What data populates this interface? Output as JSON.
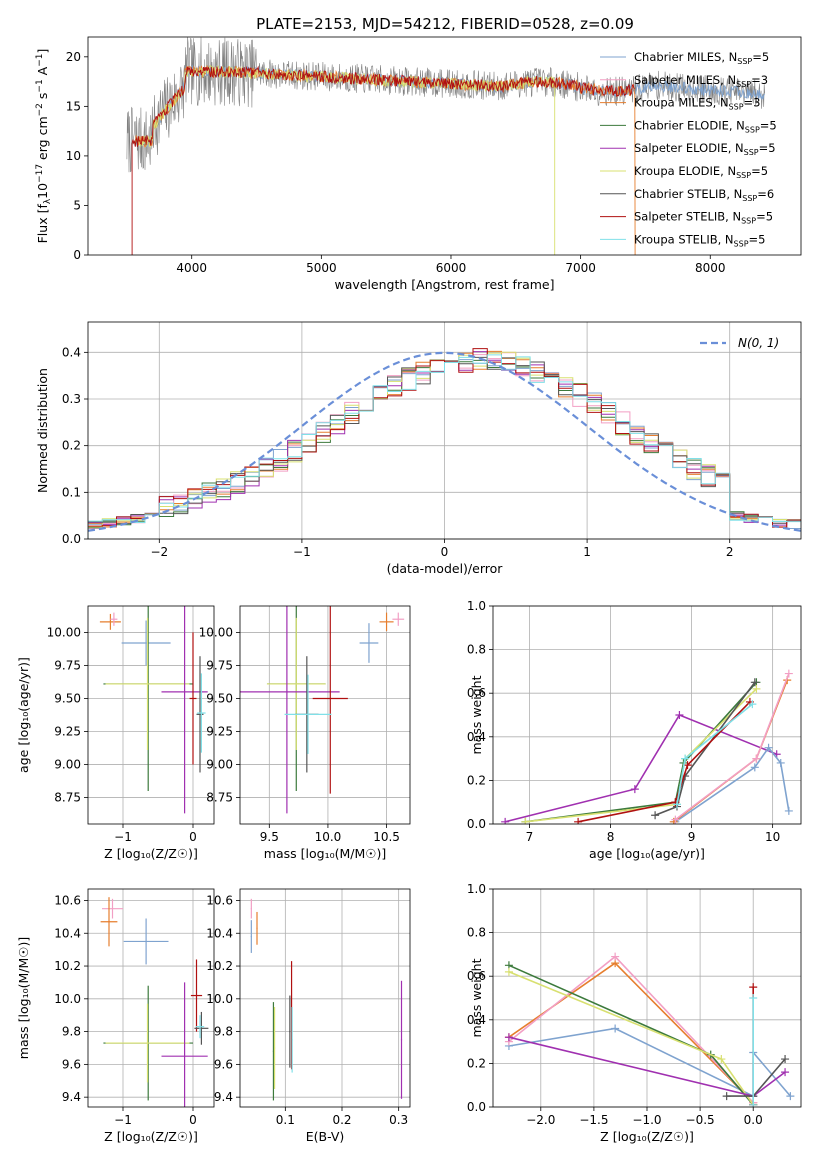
{
  "page": {
    "title": "PLATE=2153, MJD=54212, FIBERID=0528, z=0.09"
  },
  "series_styles": [
    {
      "name": "Chabrier MILES",
      "nssp": "5",
      "color": "#7fa3cf"
    },
    {
      "name": "Salpeter MILES",
      "nssp": "3",
      "color": "#f29fc4"
    },
    {
      "name": "Kroupa MILES",
      "nssp": "3",
      "color": "#e67e2e"
    },
    {
      "name": "Chabrier ELODIE",
      "nssp": "5",
      "color": "#3c7a3c"
    },
    {
      "name": "Salpeter ELODIE",
      "nssp": "5",
      "color": "#a030b0"
    },
    {
      "name": "Kroupa ELODIE",
      "nssp": "5",
      "color": "#d8e070"
    },
    {
      "name": "Chabrier STELIB",
      "nssp": "6",
      "color": "#555555"
    },
    {
      "name": "Salpeter STELIB",
      "nssp": "5",
      "color": "#b01010"
    },
    {
      "name": "Kroupa STELIB",
      "nssp": "5",
      "color": "#80e0e8"
    }
  ],
  "chart_data": [
    {
      "id": "spectrum",
      "type": "line",
      "title": "PLATE=2153, MJD=54212, FIBERID=0528, z=0.09",
      "xlabel": "wavelength [Angstrom, rest frame]",
      "ylabel": "Flux [f",
      "ylabel_sub": "λ",
      "ylabel_rest": "10",
      "ylabel_exp1": "−17",
      "ylabel_mid": " erg cm",
      "ylabel_exp2": "−2",
      "ylabel_mid2": " s",
      "ylabel_exp3": "−1",
      "ylabel_end": " A",
      "ylabel_exp4": "−1",
      "ylabel_close": "]",
      "xlim": [
        3200,
        8700
      ],
      "ylim": [
        0,
        22
      ],
      "xticks": [
        4000,
        5000,
        6000,
        7000,
        8000
      ],
      "yticks": [
        0,
        5,
        10,
        15,
        20
      ],
      "grid": false,
      "legend": "top-right",
      "legend_prefix": "N",
      "legend_sub": "SSP",
      "wave_range": [
        3500,
        8420
      ],
      "model_lines": [
        {
          "series": 0,
          "start": 3560,
          "end": 8420
        },
        {
          "series": 2,
          "start": 3560,
          "end": 7420,
          "drop_end": 7420
        },
        {
          "series": 5,
          "start": 3560,
          "end": 6800,
          "drop_end": 6800
        },
        {
          "series": 7,
          "start": 3540,
          "end": 7420,
          "drop_start": 3540
        }
      ],
      "observed_color": "#808080"
    },
    {
      "id": "residuals",
      "type": "histogram",
      "xlabel": "(data-model)/error",
      "ylabel": "Normed distribution",
      "xlim": [
        -2.5,
        2.5
      ],
      "ylim": [
        0,
        0.465
      ],
      "xticks": [
        -2,
        -1,
        0,
        1,
        2
      ],
      "yticks": [
        0,
        0.1,
        0.2,
        0.3,
        0.4
      ],
      "grid": true,
      "legend": "top-right",
      "legend_label": "N(0, 1)",
      "gaussian_color": "#6a8fd8",
      "bin_width": 0.1
    },
    {
      "id": "age_vs_Z",
      "type": "errorbar",
      "xlabel": "Z [log₁₀(Z/Z☉)]",
      "ylabel": "age  [log₁₀(age/yr)]",
      "xlim": [
        -1.5,
        0.3
      ],
      "ylim": [
        8.55,
        10.2
      ],
      "xticks": [
        -1,
        0
      ],
      "yticks": [
        8.75,
        9.0,
        9.25,
        9.5,
        9.75,
        10.0
      ],
      "grid": true,
      "points": [
        {
          "series": 2,
          "x": -1.18,
          "y": 10.08,
          "xe": 0.15,
          "ye": 0.06
        },
        {
          "series": 1,
          "x": -1.13,
          "y": 10.1,
          "xe": 0.05,
          "ye": 0.05
        },
        {
          "series": 0,
          "x": -0.67,
          "y": 9.92,
          "xe": 0.35,
          "ye": 0.17
        },
        {
          "series": 3,
          "x": -0.64,
          "y": 9.61,
          "xe": 0.64,
          "ye": 0.81
        },
        {
          "series": 5,
          "x": -0.65,
          "y": 9.61,
          "xe": 0.6,
          "ye": 0.5
        },
        {
          "series": 4,
          "x": -0.12,
          "y": 9.55,
          "xe": 0.33,
          "ye": 0.92
        },
        {
          "series": 7,
          "x": 0.0,
          "y": 9.5,
          "xe": 0.05,
          "ye": 0.5
        },
        {
          "series": 6,
          "x": 0.1,
          "y": 9.38,
          "xe": 0.05,
          "ye": 0.44
        },
        {
          "series": 8,
          "x": 0.12,
          "y": 9.39,
          "xe": 0.06,
          "ye": 0.3
        }
      ]
    },
    {
      "id": "age_vs_mass",
      "type": "errorbar",
      "xlabel": "mass [log₁₀(M/M☉)]",
      "ylabel": "",
      "xlim": [
        9.25,
        10.7
      ],
      "ylim": [
        8.55,
        10.2
      ],
      "xticks": [
        9.5,
        10.0,
        10.5
      ],
      "yticks": [
        8.75,
        9.0,
        9.25,
        9.5,
        9.75,
        10.0
      ],
      "grid": true,
      "points": [
        {
          "series": 1,
          "x": 10.6,
          "y": 10.1,
          "xe": 0.05,
          "ye": 0.05
        },
        {
          "series": 2,
          "x": 10.5,
          "y": 10.08,
          "xe": 0.06,
          "ye": 0.07
        },
        {
          "series": 0,
          "x": 10.35,
          "y": 9.92,
          "xe": 0.08,
          "ye": 0.15
        },
        {
          "series": 3,
          "x": 9.73,
          "y": 9.61,
          "xe": 0.25,
          "ye": 0.81
        },
        {
          "series": 5,
          "x": 9.73,
          "y": 9.61,
          "xe": 0.25,
          "ye": 0.5
        },
        {
          "series": 4,
          "x": 9.65,
          "y": 9.55,
          "xe": 0.45,
          "ye": 0.92
        },
        {
          "series": 7,
          "x": 10.02,
          "y": 9.5,
          "xe": 0.15,
          "ye": 0.72
        },
        {
          "series": 6,
          "x": 9.82,
          "y": 9.38,
          "xe": 0.1,
          "ye": 0.44
        },
        {
          "series": 8,
          "x": 9.83,
          "y": 9.38,
          "xe": 0.2,
          "ye": 0.3
        }
      ]
    },
    {
      "id": "weight_vs_age",
      "type": "line",
      "xlabel": "age  [log₁₀(age/yr)]",
      "ylabel": "mass weight",
      "xlim": [
        6.55,
        10.35
      ],
      "ylim": [
        0,
        1.0
      ],
      "xticks": [
        7,
        8,
        9,
        10
      ],
      "yticks": [
        0.0,
        0.2,
        0.4,
        0.6,
        0.8,
        1.0
      ],
      "grid": true,
      "series": [
        {
          "series": 4,
          "x": [
            6.7,
            8.3,
            8.85,
            10.05
          ],
          "y": [
            0.01,
            0.16,
            0.5,
            0.32
          ]
        },
        {
          "series": 0,
          "x": [
            8.8,
            9.78,
            9.95,
            10.1,
            10.2
          ],
          "y": [
            0.01,
            0.26,
            0.35,
            0.28,
            0.06
          ]
        },
        {
          "series": 2,
          "x": [
            8.78,
            9.8,
            10.18
          ],
          "y": [
            0.01,
            0.3,
            0.66
          ]
        },
        {
          "series": 1,
          "x": [
            8.8,
            9.8,
            10.2
          ],
          "y": [
            0.02,
            0.3,
            0.69
          ]
        },
        {
          "series": 3,
          "x": [
            6.95,
            8.8,
            8.9,
            9.8
          ],
          "y": [
            0.01,
            0.1,
            0.28,
            0.65
          ]
        },
        {
          "series": 5,
          "x": [
            6.95,
            8.82,
            8.92,
            9.8
          ],
          "y": [
            0.01,
            0.09,
            0.3,
            0.62
          ]
        },
        {
          "series": 6,
          "x": [
            8.55,
            8.82,
            8.92,
            9.78
          ],
          "y": [
            0.04,
            0.08,
            0.22,
            0.65
          ]
        },
        {
          "series": 7,
          "x": [
            7.6,
            8.8,
            8.95,
            9.72
          ],
          "y": [
            0.01,
            0.1,
            0.27,
            0.56
          ]
        },
        {
          "series": 8,
          "x": [
            8.82,
            8.92,
            9.75
          ],
          "y": [
            0.09,
            0.3,
            0.55
          ]
        }
      ]
    },
    {
      "id": "mass_vs_Z",
      "type": "errorbar",
      "xlabel": "Z [log₁₀(Z/Z☉)]",
      "ylabel": "mass [log₁₀(M/M☉)]",
      "xlim": [
        -1.5,
        0.3
      ],
      "ylim": [
        9.34,
        10.67
      ],
      "xticks": [
        -1,
        0
      ],
      "yticks": [
        9.4,
        9.6,
        9.8,
        10.0,
        10.2,
        10.4,
        10.6
      ],
      "grid": true,
      "points": [
        {
          "series": 1,
          "x": -1.15,
          "y": 10.55,
          "xe": 0.15,
          "ye": 0.06
        },
        {
          "series": 2,
          "x": -1.2,
          "y": 10.47,
          "xe": 0.12,
          "ye": 0.15
        },
        {
          "series": 0,
          "x": -0.67,
          "y": 10.35,
          "xe": 0.32,
          "ye": 0.14
        },
        {
          "series": 3,
          "x": -0.64,
          "y": 9.73,
          "xe": 0.64,
          "ye": 0.35
        },
        {
          "series": 5,
          "x": -0.65,
          "y": 9.73,
          "xe": 0.6,
          "ye": 0.24
        },
        {
          "series": 4,
          "x": -0.12,
          "y": 9.65,
          "xe": 0.33,
          "ye": 0.45
        },
        {
          "series": 7,
          "x": 0.05,
          "y": 10.02,
          "xe": 0.08,
          "ye": 0.22
        },
        {
          "series": 6,
          "x": 0.12,
          "y": 9.82,
          "xe": 0.1,
          "ye": 0.1
        },
        {
          "series": 8,
          "x": 0.1,
          "y": 9.83,
          "xe": 0.06,
          "ye": 0.07
        }
      ]
    },
    {
      "id": "mass_vs_EBV",
      "type": "errorbar",
      "xlabel": "E(B-V)",
      "ylabel": "",
      "xlim": [
        0.02,
        0.32
      ],
      "ylim": [
        9.34,
        10.67
      ],
      "xticks": [
        0.1,
        0.2,
        0.3
      ],
      "yticks": [
        9.4,
        9.6,
        9.8,
        10.0,
        10.2,
        10.4,
        10.6
      ],
      "grid": true,
      "points": [
        {
          "series": 1,
          "x": 0.04,
          "y": 10.55,
          "xe": 0.001,
          "ye": 0.06
        },
        {
          "series": 0,
          "x": 0.04,
          "y": 10.38,
          "xe": 0.001,
          "ye": 0.1
        },
        {
          "series": 2,
          "x": 0.05,
          "y": 10.43,
          "xe": 0.001,
          "ye": 0.1
        },
        {
          "series": 3,
          "x": 0.079,
          "y": 9.68,
          "xe": 0.001,
          "ye": 0.3
        },
        {
          "series": 5,
          "x": 0.081,
          "y": 9.7,
          "xe": 0.001,
          "ye": 0.25
        },
        {
          "series": 7,
          "x": 0.111,
          "y": 9.9,
          "xe": 0.001,
          "ye": 0.33
        },
        {
          "series": 6,
          "x": 0.108,
          "y": 9.8,
          "xe": 0.001,
          "ye": 0.22
        },
        {
          "series": 8,
          "x": 0.112,
          "y": 9.75,
          "xe": 0.001,
          "ye": 0.2
        },
        {
          "series": 4,
          "x": 0.305,
          "y": 9.75,
          "xe": 0.001,
          "ye": 0.36
        }
      ]
    },
    {
      "id": "weight_vs_Z",
      "type": "line",
      "xlabel": "Z [log₁₀(Z/Z☉)]",
      "ylabel": "mass weight",
      "xlim": [
        -2.45,
        0.45
      ],
      "ylim": [
        0,
        1.0
      ],
      "xticks": [
        -2.0,
        -1.5,
        -1.0,
        -0.5,
        0.0
      ],
      "yticks": [
        0.0,
        0.2,
        0.4,
        0.6,
        0.8,
        1.0
      ],
      "grid": true,
      "series": [
        {
          "series": 0,
          "x": [
            -2.3,
            -1.3,
            0.0,
            0.0,
            0.35
          ],
          "y": [
            0.28,
            0.36,
            0.05,
            0.25,
            0.05
          ]
        },
        {
          "series": 2,
          "x": [
            -2.3,
            -1.3,
            0.0
          ],
          "y": [
            0.32,
            0.66,
            0.02
          ]
        },
        {
          "series": 1,
          "x": [
            -2.3,
            -1.3,
            0.0
          ],
          "y": [
            0.3,
            0.69,
            0.02
          ]
        },
        {
          "series": 3,
          "x": [
            -2.3,
            -0.4,
            0.0
          ],
          "y": [
            0.65,
            0.24,
            0.01
          ]
        },
        {
          "series": 5,
          "x": [
            -2.3,
            -0.3,
            0.0
          ],
          "y": [
            0.62,
            0.22,
            0.01
          ]
        },
        {
          "series": 4,
          "x": [
            -2.3,
            0.0,
            0.3
          ],
          "y": [
            0.32,
            0.05,
            0.16
          ]
        },
        {
          "series": 6,
          "x": [
            -0.25,
            0.0,
            0.3
          ],
          "y": [
            0.05,
            0.05,
            0.22
          ]
        },
        {
          "series": 7,
          "x": [
            0.0,
            0.0
          ],
          "y": [
            0.01,
            0.55
          ]
        },
        {
          "series": 8,
          "x": [
            0.0,
            0.0
          ],
          "y": [
            0.01,
            0.5
          ]
        }
      ]
    }
  ]
}
